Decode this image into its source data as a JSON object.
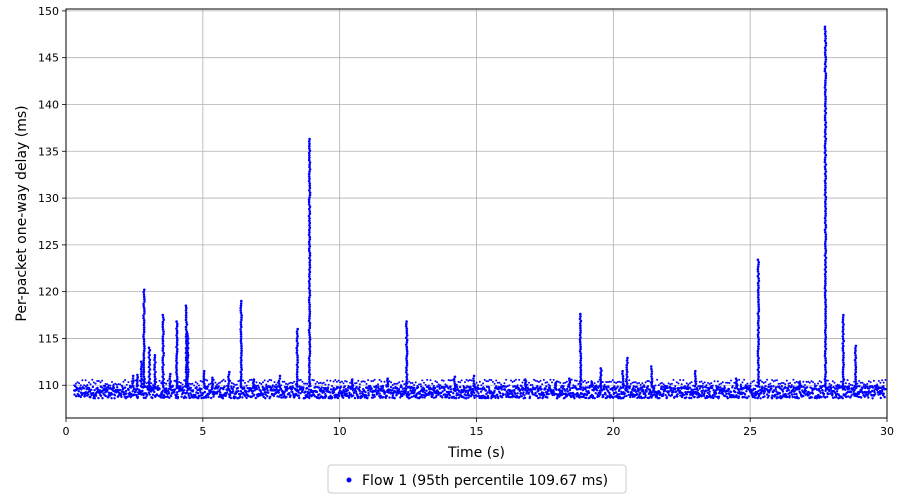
{
  "chart_data": {
    "type": "scatter",
    "xlabel": "Time (s)",
    "ylabel": "Per-packet one-way delay (ms)",
    "xlim": [
      0,
      30
    ],
    "ylim": [
      106.5,
      150.2
    ],
    "x_ticks": [
      "0",
      "5",
      "10",
      "15",
      "20",
      "25",
      "30"
    ],
    "y_ticks": [
      "110",
      "115",
      "120",
      "125",
      "130",
      "135",
      "140",
      "145",
      "150"
    ],
    "grid": true,
    "legend_position": "bottom-center",
    "series": [
      {
        "name": "Flow 1 (95th percentile 109.67 ms)",
        "color": "#0000ff",
        "baseline": {
          "x_start": 0.3,
          "x_end": 29.95,
          "y_low": 108.6,
          "y_high": 109.9
        },
        "spikes": [
          {
            "x": 2.45,
            "y_top": 111.0
          },
          {
            "x": 2.6,
            "y_top": 111.1
          },
          {
            "x": 2.75,
            "y_top": 112.5
          },
          {
            "x": 2.85,
            "y_top": 120.2
          },
          {
            "x": 3.05,
            "y_top": 114.0
          },
          {
            "x": 3.25,
            "y_top": 113.2
          },
          {
            "x": 3.55,
            "y_top": 117.5
          },
          {
            "x": 3.8,
            "y_top": 111.2
          },
          {
            "x": 4.05,
            "y_top": 116.8
          },
          {
            "x": 4.45,
            "y_top": 115.5
          },
          {
            "x": 4.4,
            "y_top": 118.5
          },
          {
            "x": 5.05,
            "y_top": 111.5
          },
          {
            "x": 5.35,
            "y_top": 110.8
          },
          {
            "x": 5.95,
            "y_top": 111.4
          },
          {
            "x": 6.4,
            "y_top": 119.0
          },
          {
            "x": 6.85,
            "y_top": 110.6
          },
          {
            "x": 7.8,
            "y_top": 111.0
          },
          {
            "x": 8.45,
            "y_top": 116.0
          },
          {
            "x": 8.9,
            "y_top": 136.3
          },
          {
            "x": 10.45,
            "y_top": 110.6
          },
          {
            "x": 11.75,
            "y_top": 110.7
          },
          {
            "x": 12.45,
            "y_top": 116.8
          },
          {
            "x": 14.2,
            "y_top": 110.9
          },
          {
            "x": 14.9,
            "y_top": 111.0
          },
          {
            "x": 16.8,
            "y_top": 110.6
          },
          {
            "x": 17.9,
            "y_top": 110.3
          },
          {
            "x": 18.4,
            "y_top": 110.7
          },
          {
            "x": 18.8,
            "y_top": 117.6
          },
          {
            "x": 19.2,
            "y_top": 110.3
          },
          {
            "x": 19.55,
            "y_top": 111.8
          },
          {
            "x": 20.35,
            "y_top": 111.5
          },
          {
            "x": 20.5,
            "y_top": 112.9
          },
          {
            "x": 21.4,
            "y_top": 112.0
          },
          {
            "x": 23.0,
            "y_top": 111.5
          },
          {
            "x": 24.5,
            "y_top": 110.7
          },
          {
            "x": 25.3,
            "y_top": 123.4
          },
          {
            "x": 26.8,
            "y_top": 110.3
          },
          {
            "x": 27.75,
            "y_top": 148.3
          },
          {
            "x": 28.4,
            "y_top": 117.5
          },
          {
            "x": 28.85,
            "y_top": 114.2
          }
        ]
      }
    ]
  }
}
